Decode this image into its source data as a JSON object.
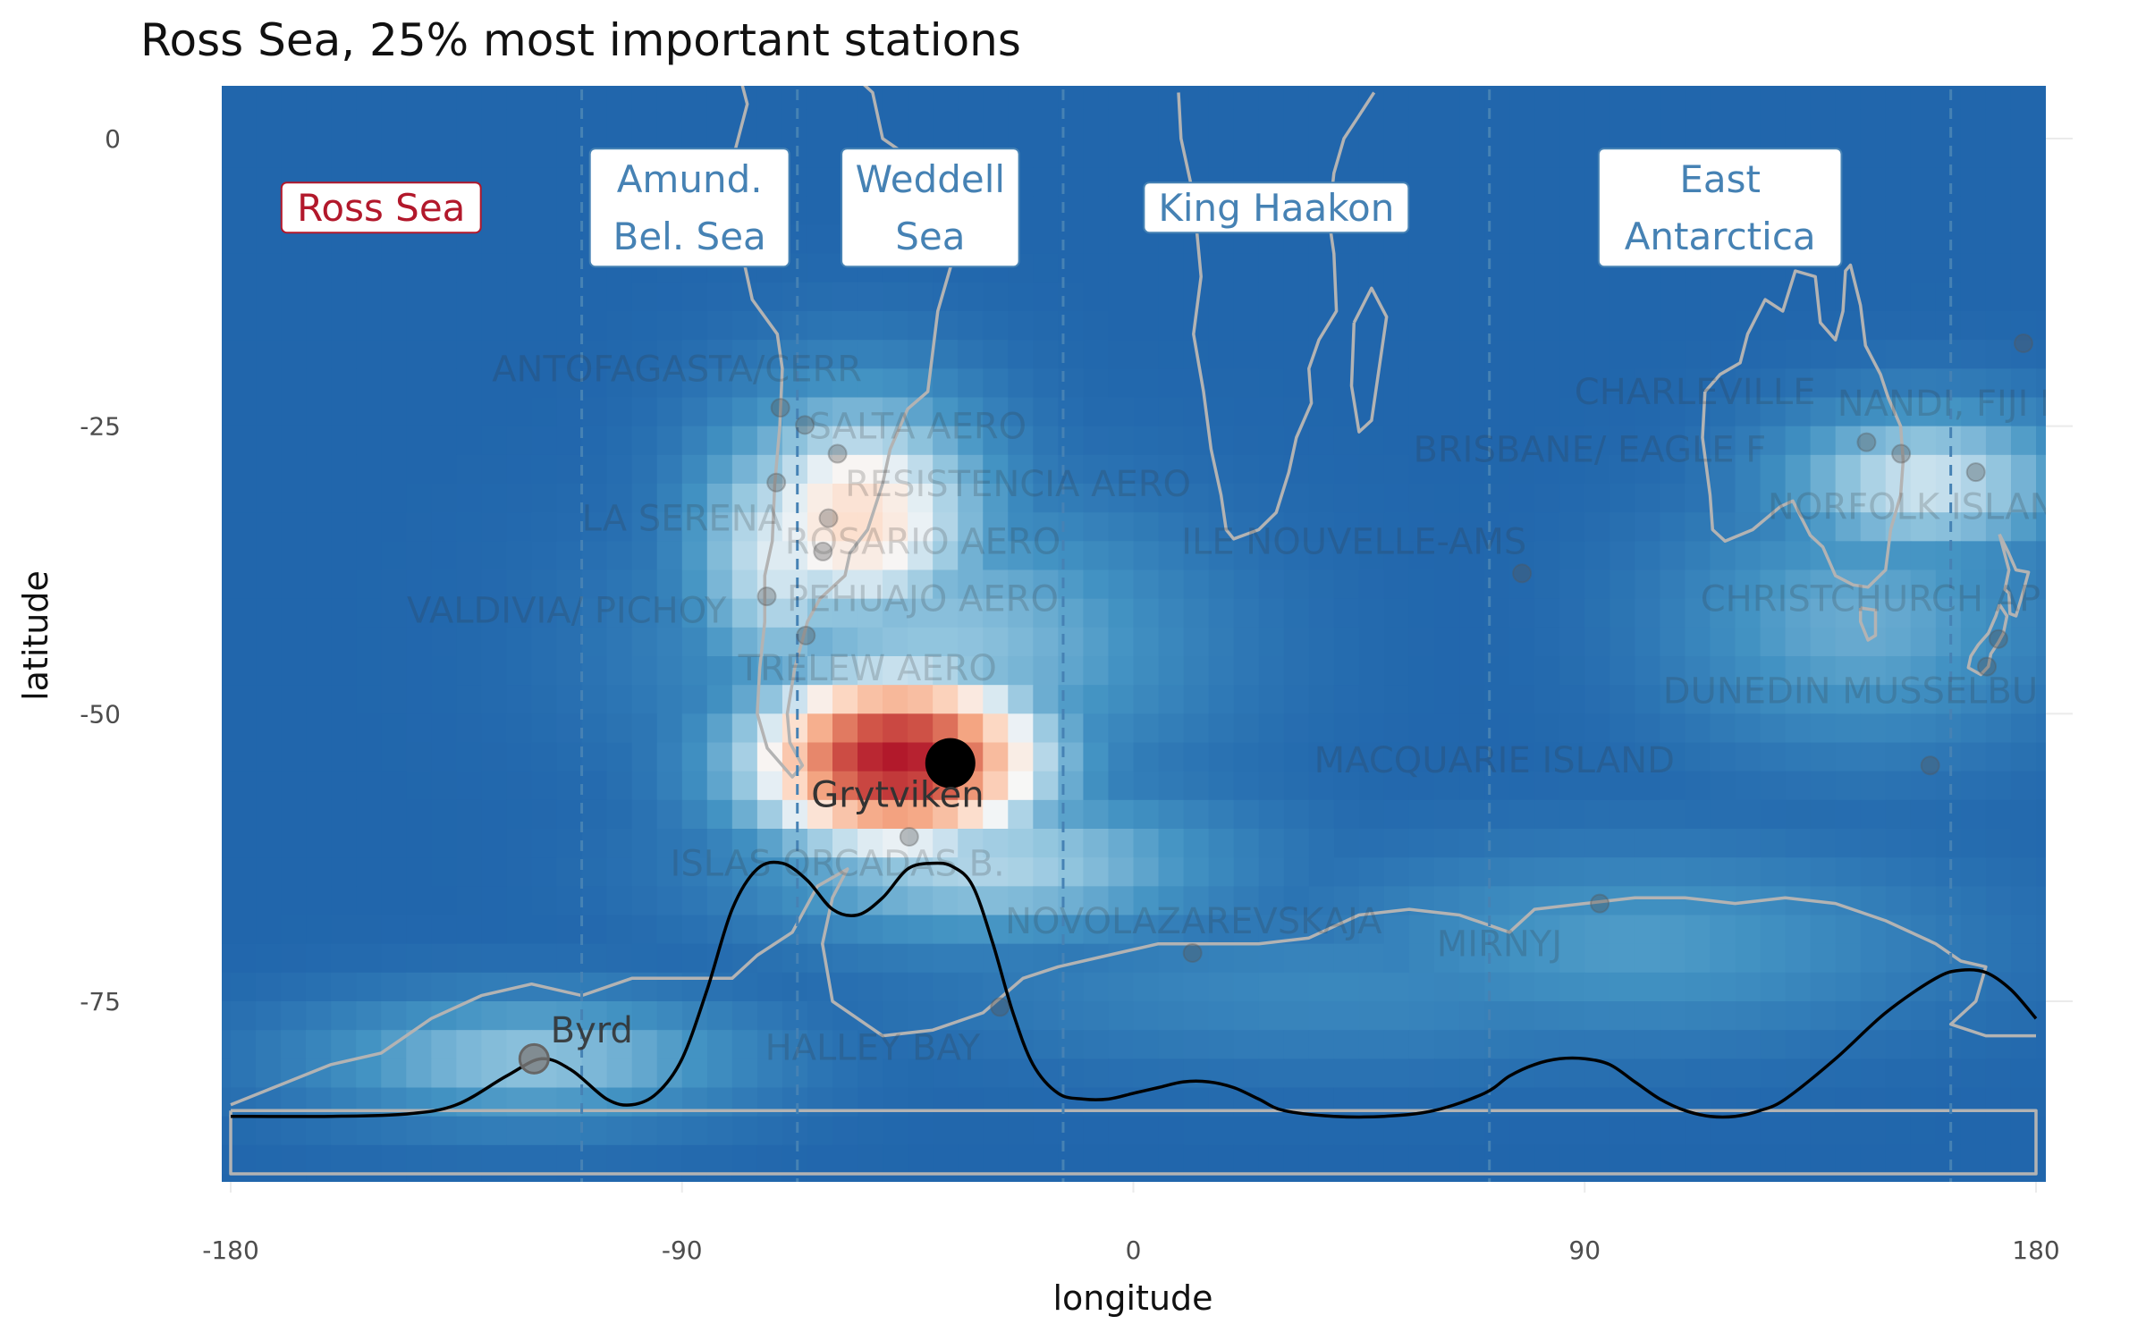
{
  "title": "Ross Sea, 25% most important stations",
  "axes": {
    "xlabel": "longitude",
    "ylabel": "latitude",
    "xlim": [
      -180,
      180
    ],
    "ylim": [
      -90,
      5
    ],
    "xticks": [
      {
        "value": -180,
        "label": "-180"
      },
      {
        "value": -90,
        "label": "-90"
      },
      {
        "value": 0,
        "label": "0"
      },
      {
        "value": 90,
        "label": "90"
      },
      {
        "value": 180,
        "label": "180"
      }
    ],
    "yticks": [
      {
        "value": 0,
        "label": "0"
      },
      {
        "value": -25,
        "label": "-25"
      },
      {
        "value": -50,
        "label": "-50"
      },
      {
        "value": -75,
        "label": "-75"
      }
    ]
  },
  "colors": {
    "background_blue": "#2166ac",
    "highlight_red": "#b2182b",
    "region_text": "#4682b4",
    "selected_region": "#b2182b",
    "coastline": "#b3b3b3",
    "curve": "#000000",
    "gridline": "#ebebeb"
  },
  "heatmap_hotspots": [
    {
      "lon": -47,
      "lat": -54,
      "value": 1.0,
      "sigma_lon": 22,
      "sigma_lat": 6
    },
    {
      "lon": -55,
      "lat": -33,
      "value": 0.18,
      "sigma_lon": 20,
      "sigma_lat": 8
    },
    {
      "lon": -70,
      "lat": -36,
      "value": -0.05,
      "sigma_lon": 14,
      "sigma_lat": 9
    },
    {
      "lon": -30,
      "lat": -63,
      "value": -0.2,
      "sigma_lon": 34,
      "sigma_lat": 5
    },
    {
      "lon": -40,
      "lat": -44,
      "value": -0.3,
      "sigma_lon": 36,
      "sigma_lat": 9
    },
    {
      "lon": -120,
      "lat": -80,
      "value": -0.3,
      "sigma_lon": 32,
      "sigma_lat": 4
    },
    {
      "lon": 158,
      "lat": -30,
      "value": -0.1,
      "sigma_lon": 22,
      "sigma_lat": 5
    },
    {
      "lon": 145,
      "lat": -42,
      "value": -0.45,
      "sigma_lon": 28,
      "sigma_lat": 8
    },
    {
      "lon": 100,
      "lat": -70,
      "value": -0.55,
      "sigma_lon": 45,
      "sigma_lat": 6
    },
    {
      "lon": 40,
      "lat": -74,
      "value": -0.7,
      "sigma_lon": 60,
      "sigma_lat": 5
    }
  ],
  "region_boundaries": [
    -110,
    -67,
    -14,
    71,
    163
  ],
  "regions": [
    {
      "lines": [
        "Ross Sea"
      ],
      "lon": -150,
      "lat": -6,
      "selected": true
    },
    {
      "lines": [
        "Amund.",
        "Bel. Sea"
      ],
      "lon": -88.5,
      "lat": -6,
      "selected": false
    },
    {
      "lines": [
        "Weddell",
        "Sea"
      ],
      "lon": -40.5,
      "lat": -6,
      "selected": false
    },
    {
      "lines": [
        "King Haakon"
      ],
      "lon": 28.5,
      "lat": -6,
      "selected": false
    },
    {
      "lines": [
        "East",
        "Antarctica"
      ],
      "lon": 117,
      "lat": -6,
      "selected": false
    }
  ],
  "selected_station": {
    "name": "Grytviken",
    "lon": -36.5,
    "lat": -54.3,
    "label_lon": -47,
    "label_lat": -57
  },
  "labeled_station": {
    "name": "Byrd",
    "lon": -119.5,
    "lat": -80,
    "label_lon": -108,
    "label_lat": -77.5
  },
  "stations": [
    {
      "name": "ANTOFAGASTA/CERR",
      "lon": -70.4,
      "lat": -23.4,
      "label_lon": -91,
      "label_lat": -20
    },
    {
      "name": "SALTA AERO",
      "lon": -65.5,
      "lat": -24.9,
      "label_lon": -43,
      "label_lat": -25
    },
    {
      "name": "RESISTENCIA AERO",
      "lon": -59,
      "lat": -27.4,
      "label_lon": -23,
      "label_lat": -30
    },
    {
      "name": "LA SERENA",
      "lon": -71.2,
      "lat": -29.9,
      "label_lon": -90,
      "label_lat": -33
    },
    {
      "name": "ROSARIO AERO",
      "lon": -60.8,
      "lat": -33,
      "label_lon": -42,
      "label_lat": -35
    },
    {
      "name": "PEHUAJO AERO",
      "lon": -61.9,
      "lat": -35.9,
      "label_lon": -42,
      "label_lat": -40
    },
    {
      "name": "VALDIVIA/ PICHOY",
      "lon": -73.1,
      "lat": -39.8,
      "label_lon": -113,
      "label_lat": -41
    },
    {
      "name": "TRELEW AERO",
      "lon": -65.3,
      "lat": -43.2,
      "label_lon": -53,
      "label_lat": -46
    },
    {
      "name": "ISLAS ORCADAS B.",
      "lon": -44.7,
      "lat": -60.7,
      "label_lon": -59,
      "label_lat": -63
    },
    {
      "name": "NOVOLAZAREVSKAJA",
      "lon": 11.8,
      "lat": -70.8,
      "label_lon": 12,
      "label_lat": -68
    },
    {
      "name": "HALLEY BAY",
      "lon": -26.6,
      "lat": -75.5,
      "label_lon": -52,
      "label_lat": -79
    },
    {
      "name": "MIRNYJ",
      "lon": 93,
      "lat": -66.5,
      "label_lon": 73,
      "label_lat": -70
    },
    {
      "name": "ILE NOUVELLE-AMS",
      "lon": 77.5,
      "lat": -37.8,
      "label_lon": 44,
      "label_lat": -35
    },
    {
      "name": "CHARLEVILLE",
      "lon": 146.2,
      "lat": -26.4,
      "label_lon": 112,
      "label_lat": -22
    },
    {
      "name": "BRISBANE/ EAGLE F",
      "lon": 153.1,
      "lat": -27.4,
      "label_lon": 91,
      "label_lat": -27
    },
    {
      "name": "NANDI, FIJI IS.",
      "lon": 177.5,
      "lat": -17.8,
      "label_lon": 165,
      "label_lat": -23
    },
    {
      "name": "NORFOLK ISLAND",
      "lon": 168,
      "lat": -29,
      "label_lon": 158,
      "label_lat": -32
    },
    {
      "name": "CHRISTCHURCH AP",
      "lon": 172.5,
      "lat": -43.5,
      "label_lon": 147,
      "label_lat": -40
    },
    {
      "name": "DUNEDIN MUSSELBU",
      "lon": 170.2,
      "lat": -45.9,
      "label_lon": 143,
      "label_lat": -48
    },
    {
      "name": "MACQUARIE ISLAND",
      "lon": 158.9,
      "lat": -54.5,
      "label_lon": 72,
      "label_lat": -54
    }
  ],
  "density_curve": {
    "baseline_lat": -85,
    "top_lat": -63,
    "lon": [
      -180,
      -160,
      -145,
      -135,
      -125,
      -118,
      -112,
      -105,
      -100,
      -95,
      -90,
      -85,
      -80,
      -75,
      -70,
      -65,
      -60,
      -55,
      -50,
      -45,
      -40,
      -36,
      -32,
      -28,
      -24,
      -20,
      -15,
      -10,
      -5,
      0,
      5,
      10,
      15,
      20,
      25,
      30,
      40,
      50,
      60,
      70,
      75,
      80,
      85,
      90,
      95,
      100,
      105,
      110,
      115,
      120,
      125,
      130,
      140,
      150,
      160,
      165,
      170,
      175,
      180
    ],
    "lat": [
      -85,
      -85,
      -84.8,
      -84,
      -81.5,
      -80,
      -81,
      -83.5,
      -84,
      -83,
      -80,
      -74,
      -67,
      -63.5,
      -63,
      -64.5,
      -67,
      -67.5,
      -66,
      -63.5,
      -63,
      -63.3,
      -65,
      -70,
      -76,
      -80.5,
      -83,
      -83.5,
      -83.5,
      -83,
      -82.5,
      -82,
      -82,
      -82.5,
      -83.5,
      -84.5,
      -85,
      -85,
      -84.5,
      -83,
      -81.5,
      -80.5,
      -80,
      -80,
      -80.5,
      -82,
      -83.5,
      -84.5,
      -85,
      -85,
      -84.5,
      -83.5,
      -80,
      -76,
      -73,
      -72.3,
      -72.5,
      -74,
      -76.5
    ]
  },
  "coastlines": [
    {
      "name": "south-america",
      "points": [
        [
          -80,
          8
        ],
        [
          -77,
          3
        ],
        [
          -80,
          -2
        ],
        [
          -81,
          -5
        ],
        [
          -78,
          -10
        ],
        [
          -76,
          -14
        ],
        [
          -71,
          -17
        ],
        [
          -70,
          -20
        ],
        [
          -70.5,
          -25
        ],
        [
          -71.5,
          -30
        ],
        [
          -72,
          -35
        ],
        [
          -73.5,
          -38
        ],
        [
          -73.5,
          -42
        ],
        [
          -74.5,
          -46
        ],
        [
          -75,
          -50
        ],
        [
          -73,
          -53
        ],
        [
          -68,
          -55.5
        ],
        [
          -66,
          -54.5
        ],
        [
          -68.5,
          -52.5
        ],
        [
          -69,
          -50
        ],
        [
          -67.5,
          -46
        ],
        [
          -65,
          -42
        ],
        [
          -62.5,
          -40
        ],
        [
          -57.5,
          -38
        ],
        [
          -56.5,
          -36
        ],
        [
          -53,
          -34
        ],
        [
          -50,
          -30
        ],
        [
          -48.5,
          -27
        ],
        [
          -45,
          -23.5
        ],
        [
          -41,
          -22
        ],
        [
          -39,
          -15
        ],
        [
          -35,
          -9
        ],
        [
          -35,
          -5
        ],
        [
          -40,
          -3
        ],
        [
          -45,
          -1.5
        ],
        [
          -50,
          0
        ],
        [
          -52,
          4
        ],
        [
          -57,
          6
        ],
        [
          -62,
          9
        ],
        [
          -70,
          11
        ],
        [
          -73,
          11
        ],
        [
          -77,
          8
        ],
        [
          -80,
          8
        ]
      ]
    },
    {
      "name": "africa",
      "points": [
        [
          9,
          4
        ],
        [
          9.5,
          0
        ],
        [
          12,
          -5
        ],
        [
          13.5,
          -12
        ],
        [
          12,
          -17
        ],
        [
          14,
          -22
        ],
        [
          15.5,
          -27
        ],
        [
          17.5,
          -31
        ],
        [
          18.5,
          -34
        ],
        [
          20,
          -34.8
        ],
        [
          25,
          -34
        ],
        [
          28.5,
          -32.5
        ],
        [
          31,
          -29
        ],
        [
          32.5,
          -26
        ],
        [
          35.5,
          -23
        ],
        [
          35,
          -20
        ],
        [
          37,
          -17.5
        ],
        [
          40.5,
          -15
        ],
        [
          40,
          -10
        ],
        [
          39,
          -7
        ],
        [
          40,
          -3
        ],
        [
          42,
          0
        ],
        [
          45,
          2
        ],
        [
          48,
          4
        ]
      ]
    },
    {
      "name": "madagascar",
      "points": [
        [
          44,
          -16
        ],
        [
          47.5,
          -13
        ],
        [
          50.5,
          -15.5
        ],
        [
          49,
          -20
        ],
        [
          47.5,
          -24.5
        ],
        [
          45,
          -25.5
        ],
        [
          43.5,
          -21.5
        ],
        [
          44,
          -16
        ]
      ]
    },
    {
      "name": "australia",
      "points": [
        [
          114,
          -22
        ],
        [
          113.5,
          -26
        ],
        [
          115,
          -31
        ],
        [
          115.5,
          -34
        ],
        [
          118,
          -35
        ],
        [
          123.5,
          -34
        ],
        [
          129,
          -32
        ],
        [
          131.5,
          -31.5
        ],
        [
          135,
          -34.5
        ],
        [
          137.5,
          -35.5
        ],
        [
          140,
          -38
        ],
        [
          143.5,
          -38.8
        ],
        [
          146.5,
          -39
        ],
        [
          150,
          -37.5
        ],
        [
          151,
          -34
        ],
        [
          153,
          -31
        ],
        [
          153.5,
          -28
        ],
        [
          153,
          -25
        ],
        [
          150.5,
          -22.5
        ],
        [
          149,
          -20.5
        ],
        [
          146,
          -18
        ],
        [
          145,
          -14.5
        ],
        [
          143,
          -11
        ],
        [
          142,
          -11.5
        ],
        [
          141.5,
          -15
        ],
        [
          140,
          -17.5
        ],
        [
          137,
          -16
        ],
        [
          136,
          -12
        ],
        [
          132,
          -11.5
        ],
        [
          129.5,
          -15
        ],
        [
          126,
          -14
        ],
        [
          122.5,
          -17
        ],
        [
          121,
          -19.5
        ],
        [
          117,
          -20.5
        ],
        [
          114,
          -22
        ]
      ]
    },
    {
      "name": "tasmania",
      "points": [
        [
          145,
          -40.8
        ],
        [
          148,
          -41
        ],
        [
          148,
          -43.2
        ],
        [
          146.5,
          -43.6
        ],
        [
          145,
          -42
        ],
        [
          145,
          -40.8
        ]
      ]
    },
    {
      "name": "new-zealand-north",
      "points": [
        [
          172.7,
          -34.4
        ],
        [
          174.5,
          -36
        ],
        [
          176,
          -37.5
        ],
        [
          178.5,
          -37.7
        ],
        [
          177.5,
          -39.3
        ],
        [
          176,
          -41.5
        ],
        [
          174.8,
          -41.3
        ],
        [
          174.6,
          -39.5
        ],
        [
          173.8,
          -39.2
        ],
        [
          174.6,
          -37.5
        ],
        [
          172.7,
          -34.4
        ]
      ]
    },
    {
      "name": "new-zealand-south",
      "points": [
        [
          172.7,
          -40.5
        ],
        [
          174.2,
          -41.5
        ],
        [
          173.5,
          -43
        ],
        [
          172.5,
          -43.8
        ],
        [
          171,
          -44.8
        ],
        [
          170.5,
          -45.9
        ],
        [
          169,
          -46.6
        ],
        [
          166.5,
          -46
        ],
        [
          167,
          -45
        ],
        [
          168.5,
          -44
        ],
        [
          170.5,
          -43
        ],
        [
          172,
          -41.5
        ],
        [
          172.7,
          -40.5
        ]
      ]
    },
    {
      "name": "antarctica",
      "points": [
        [
          -180,
          -84
        ],
        [
          -160,
          -80.5
        ],
        [
          -150,
          -79.5
        ],
        [
          -140,
          -76.5
        ],
        [
          -130,
          -74.5
        ],
        [
          -120,
          -73.5
        ],
        [
          -110,
          -74.5
        ],
        [
          -100,
          -73
        ],
        [
          -90,
          -73
        ],
        [
          -80,
          -73
        ],
        [
          -75,
          -71
        ],
        [
          -68,
          -69
        ],
        [
          -63,
          -65
        ],
        [
          -57,
          -63.5
        ],
        [
          -60,
          -66
        ],
        [
          -62,
          -70
        ],
        [
          -60,
          -75
        ],
        [
          -50,
          -78
        ],
        [
          -40,
          -77.5
        ],
        [
          -30,
          -76
        ],
        [
          -22,
          -73
        ],
        [
          -15,
          -72
        ],
        [
          -5,
          -71
        ],
        [
          5,
          -70
        ],
        [
          15,
          -70
        ],
        [
          25,
          -70
        ],
        [
          35,
          -69.5
        ],
        [
          45,
          -67.5
        ],
        [
          55,
          -67
        ],
        [
          65,
          -67.5
        ],
        [
          75,
          -69
        ],
        [
          80,
          -67
        ],
        [
          90,
          -66.5
        ],
        [
          100,
          -66
        ],
        [
          110,
          -66
        ],
        [
          120,
          -66.5
        ],
        [
          130,
          -66
        ],
        [
          140,
          -66.5
        ],
        [
          150,
          -68
        ],
        [
          160,
          -70
        ],
        [
          165,
          -71.5
        ],
        [
          170,
          -72
        ],
        [
          168,
          -75
        ],
        [
          163,
          -77
        ],
        [
          170,
          -78
        ],
        [
          180,
          -78
        ]
      ]
    },
    {
      "name": "map-frame",
      "points": [
        [
          -180,
          -84.5
        ],
        [
          180,
          -84.5
        ],
        [
          180,
          -90
        ],
        [
          -180,
          -90
        ],
        [
          -180,
          -84.5
        ]
      ]
    }
  ]
}
